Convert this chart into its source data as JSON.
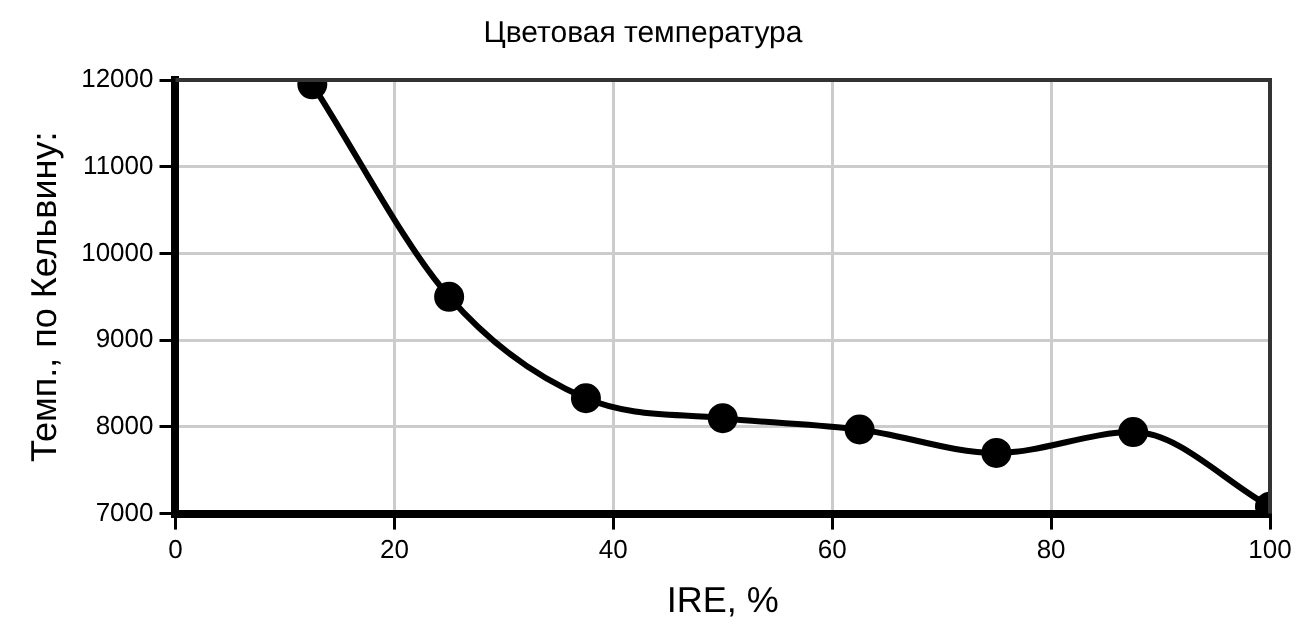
{
  "chart_data": {
    "type": "line",
    "title": "Цветовая температура",
    "xlabel": "IRE, %",
    "ylabel": "Темп., по Кельвину:",
    "x": [
      12.5,
      25,
      37.5,
      50,
      62.5,
      75,
      87.5,
      100
    ],
    "series": [
      {
        "color": "#000000",
        "values": [
          11950,
          9500,
          8330,
          8100,
          7970,
          7700,
          7940,
          7080
        ]
      }
    ],
    "xlim": [
      0,
      100
    ],
    "xticks": [
      0,
      20,
      40,
      60,
      80,
      100
    ],
    "ylim": [
      7000,
      12000
    ],
    "yticks": [
      7000,
      8000,
      9000,
      10000,
      11000,
      12000
    ],
    "grid": true,
    "legend": false,
    "marker": "circle",
    "line_style": "solid"
  }
}
